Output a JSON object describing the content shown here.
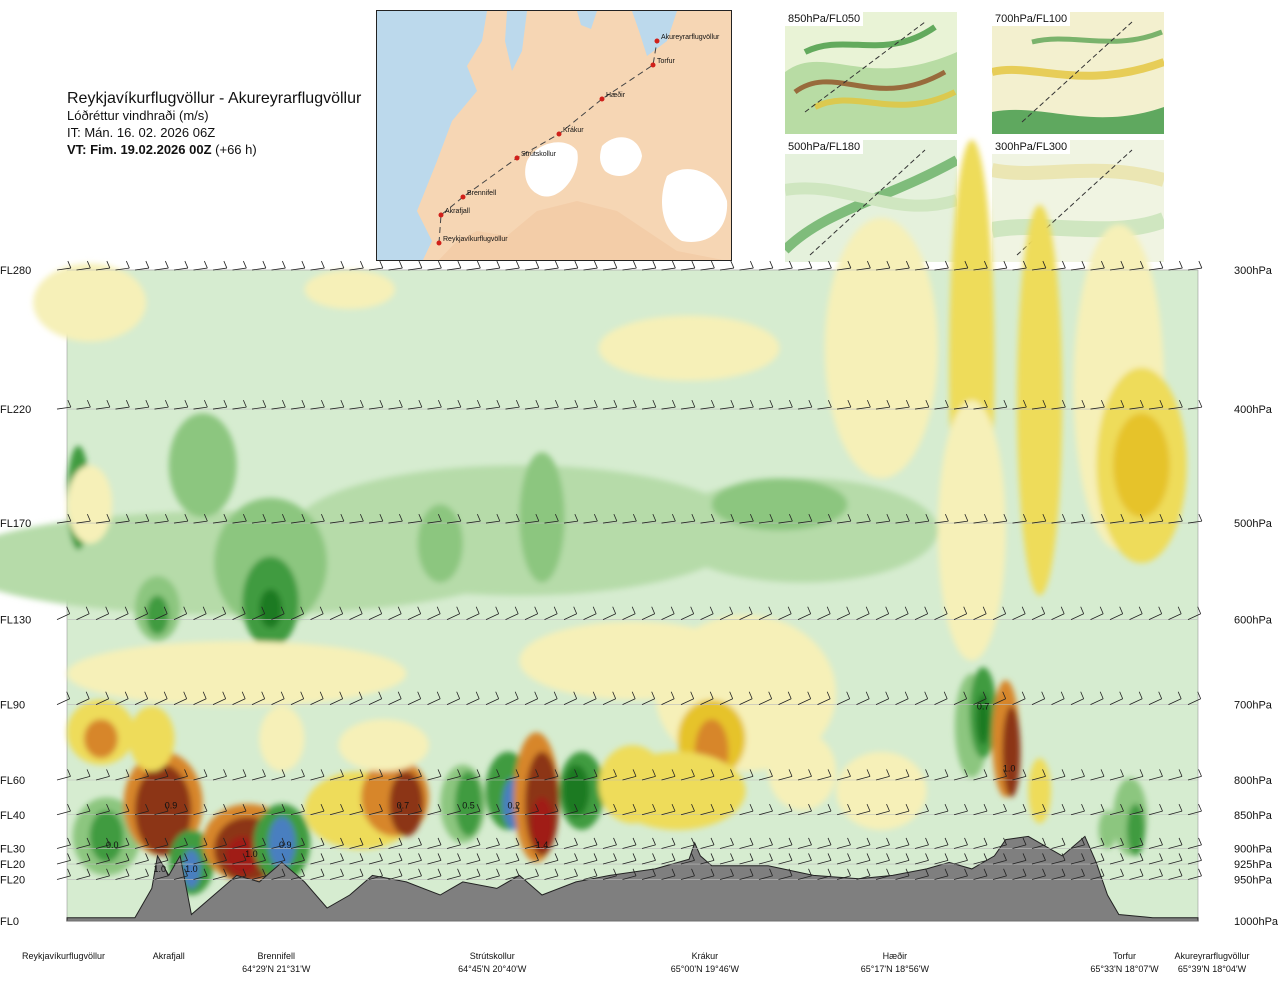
{
  "header": {
    "route": "Reykjavíkurflugvöllur - Akureyrarflugvöllur",
    "parameter": "Lóðréttur vindhraði (m/s)",
    "issue_time": "IT: Mán. 16. 02. 2026 06Z",
    "valid_prefix": "VT: Fim. 19.02.2026 00Z",
    "valid_suffix": " (+66 h)"
  },
  "map": {
    "places": [
      "Akureyrarflugvöllur",
      "Torfur",
      "Hæðir",
      "Krákur",
      "Strútskollur",
      "Brennifell",
      "Akrafjall",
      "Reykjavíkurflugvöllur"
    ]
  },
  "thumbnails": [
    {
      "label": "850hPa/FL050"
    },
    {
      "label": "700hPa/FL100"
    },
    {
      "label": "500hPa/FL180"
    },
    {
      "label": "300hPa/FL300"
    }
  ],
  "chart_data": {
    "type": "heatmap",
    "title": "Reykjavíkurflugvöllur - Akureyrarflugvöllur",
    "subtitle": "Lóðréttur vindhraði (m/s)",
    "left_axis_levels": [
      {
        "fl": "FL280",
        "hpa": "300hPa",
        "frac": 0.0
      },
      {
        "fl": "FL220",
        "hpa": "400hPa",
        "frac": 0.2136
      },
      {
        "fl": "FL170",
        "hpa": "500hPa",
        "frac": 0.3887
      },
      {
        "fl": "FL130",
        "hpa": "600hPa",
        "frac": 0.5371
      },
      {
        "fl": "FL90",
        "hpa": "700hPa",
        "frac": 0.6677
      },
      {
        "fl": "FL60",
        "hpa": "800hPa",
        "frac": 0.7834
      },
      {
        "fl": "FL40",
        "hpa": "850hPa",
        "frac": 0.8368
      },
      {
        "fl": "FL30",
        "hpa": "900hPa",
        "frac": 0.8887
      },
      {
        "fl": "FL20",
        "hpa": "925hPa",
        "frac": 0.9125
      },
      {
        "fl": "FL20",
        "hpa": "950hPa",
        "frac": 0.9362
      },
      {
        "fl": "FL0",
        "hpa": "1000hPa",
        "frac": 1.0
      }
    ],
    "locations": [
      {
        "name": "Reykjavíkurflugvöllur",
        "coord": "",
        "pos": 0.0
      },
      {
        "name": "Akrafjall",
        "coord": "",
        "pos": 0.09
      },
      {
        "name": "Brennifell",
        "coord": "64°29'N 21°31'W",
        "pos": 0.185
      },
      {
        "name": "Strútskollur",
        "coord": "64°45'N 20°40'W",
        "pos": 0.376
      },
      {
        "name": "Krákur",
        "coord": "65°00'N 19°46'W",
        "pos": 0.564
      },
      {
        "name": "Hæðir",
        "coord": "65°17'N 18°56'W",
        "pos": 0.732
      },
      {
        "name": "Torfur",
        "coord": "65°33'N 18°07'W",
        "pos": 0.935
      },
      {
        "name": "Akureyrarflugvöllur",
        "coord": "65°39'N 18°04'W",
        "pos": 1.0
      }
    ],
    "contour_labels": [
      {
        "text": "0.0",
        "x": 0.04,
        "y": 0.888
      },
      {
        "text": "1.0",
        "x": 0.082,
        "y": 0.925
      },
      {
        "text": "0.9",
        "x": 0.092,
        "y": 0.827
      },
      {
        "text": "1.0",
        "x": 0.11,
        "y": 0.925
      },
      {
        "text": "1.0",
        "x": 0.163,
        "y": 0.902
      },
      {
        "text": "0.9",
        "x": 0.193,
        "y": 0.888
      },
      {
        "text": "0.7",
        "x": 0.297,
        "y": 0.827
      },
      {
        "text": "0.5",
        "x": 0.355,
        "y": 0.827
      },
      {
        "text": "0.2",
        "x": 0.395,
        "y": 0.827
      },
      {
        "text": "1.4",
        "x": 0.42,
        "y": 0.888
      },
      {
        "text": "0.7",
        "x": 0.81,
        "y": 0.675
      },
      {
        "text": "1.0",
        "x": 0.833,
        "y": 0.77
      }
    ],
    "value_range": [
      -1.5,
      1.5
    ],
    "colorscale": "green = ascent, yellow/orange/brown = descent"
  }
}
